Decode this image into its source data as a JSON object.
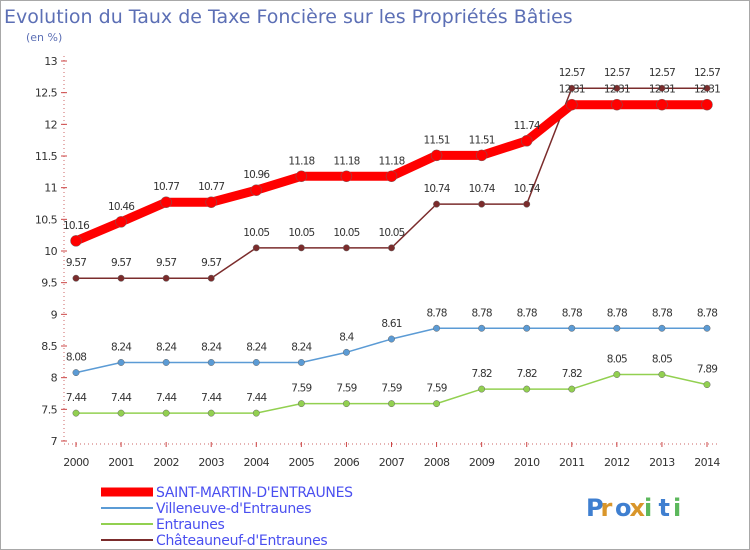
{
  "header": {
    "title": "Evolution du Taux de Taxe Foncière sur les Propriétés Bâties",
    "unit": "(en %)"
  },
  "logo": {
    "text": "Proxiti"
  },
  "chart_data": {
    "type": "line",
    "title": "Evolution du Taux de Taxe Foncière sur les Propriétés Bâties",
    "ylabel": "(en %)",
    "xlabel": "",
    "x": [
      "2000",
      "2001",
      "2002",
      "2003",
      "2004",
      "2005",
      "2006",
      "2007",
      "2008",
      "2009",
      "2010",
      "2011",
      "2012",
      "2013",
      "2014"
    ],
    "ylim": [
      7,
      13
    ],
    "yticks": [
      "7",
      "7.5",
      "8",
      "8.5",
      "9",
      "9.5",
      "10",
      "10.5",
      "11",
      "11.5",
      "12",
      "12.5",
      "13"
    ],
    "grid": false,
    "legend_position": "bottom-left",
    "series": [
      {
        "name": "SAINT-MARTIN-D'ENTRAUNES",
        "color": "#ff0000",
        "values": [
          10.16,
          10.46,
          10.77,
          10.77,
          10.96,
          11.18,
          11.18,
          11.18,
          11.51,
          11.51,
          11.74,
          12.31,
          12.31,
          12.31,
          12.31
        ],
        "labels": [
          "10.16",
          "10.46",
          "10.77",
          "10.77",
          "10.96",
          "11.18",
          "11.18",
          "11.18",
          "11.51",
          "11.51",
          "11.74",
          "12.31",
          "12.31",
          "12.31",
          "12.31"
        ]
      },
      {
        "name": "Villeneuve-d'Entraunes",
        "color": "#5b9bd5",
        "values": [
          8.08,
          8.24,
          8.24,
          8.24,
          8.24,
          8.24,
          8.4,
          8.61,
          8.78,
          8.78,
          8.78,
          8.78,
          8.78,
          8.78,
          8.78
        ],
        "labels": [
          "8.08",
          "8.24",
          "8.24",
          "8.24",
          "8.24",
          "8.24",
          "8.4",
          "8.61",
          "8.78",
          "8.78",
          "8.78",
          "8.78",
          "8.78",
          "8.78",
          "8.78"
        ]
      },
      {
        "name": "Entraunes",
        "color": "#92d050",
        "values": [
          7.44,
          7.44,
          7.44,
          7.44,
          7.44,
          7.59,
          7.59,
          7.59,
          7.59,
          7.82,
          7.82,
          7.82,
          8.05,
          8.05,
          7.89
        ],
        "labels": [
          "7.44",
          "7.44",
          "7.44",
          "7.44",
          "7.44",
          "7.59",
          "7.59",
          "7.59",
          "7.59",
          "7.82",
          "7.82",
          "7.82",
          "8.05",
          "8.05",
          "7.89"
        ]
      },
      {
        "name": "Châteauneuf-d'Entraunes",
        "color": "#7b2c2c",
        "values": [
          9.57,
          9.57,
          9.57,
          9.57,
          10.05,
          10.05,
          10.05,
          10.05,
          10.74,
          10.74,
          10.74,
          12.57,
          12.57,
          12.57,
          12.57
        ],
        "labels": [
          "9.57",
          "9.57",
          "9.57",
          "9.57",
          "10.05",
          "10.05",
          "10.05",
          "10.05",
          "10.74",
          "10.74",
          "10.74",
          "12.57",
          "12.57",
          "12.57",
          "12.57"
        ]
      }
    ]
  }
}
